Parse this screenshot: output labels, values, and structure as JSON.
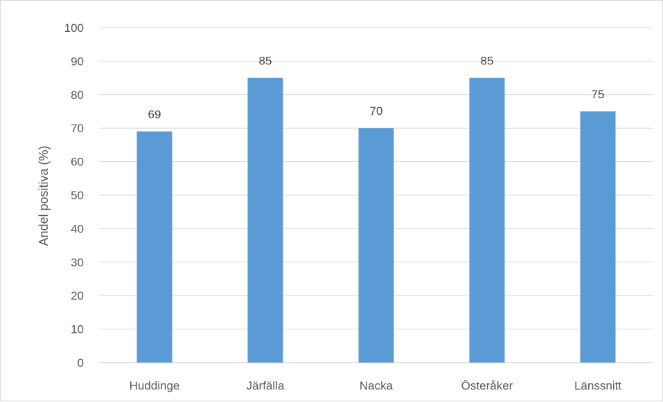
{
  "chart_data": {
    "type": "bar",
    "categories": [
      "Huddinge",
      "Järfälla",
      "Nacka",
      "Österåker",
      "Länssnitt"
    ],
    "values": [
      69,
      85,
      70,
      85,
      75
    ],
    "data_labels": [
      "69",
      "85",
      "70",
      "85",
      "75"
    ],
    "title": "",
    "xlabel": "",
    "ylabel": "Andel positiva (%)",
    "ylim": [
      0,
      100
    ],
    "yticks": [
      0,
      10,
      20,
      30,
      40,
      50,
      60,
      70,
      80,
      90,
      100
    ],
    "grid": true,
    "legend": "none",
    "colors": {
      "bar": "#5b9bd5",
      "grid": "#d9d9d9",
      "text": "#595959"
    }
  }
}
